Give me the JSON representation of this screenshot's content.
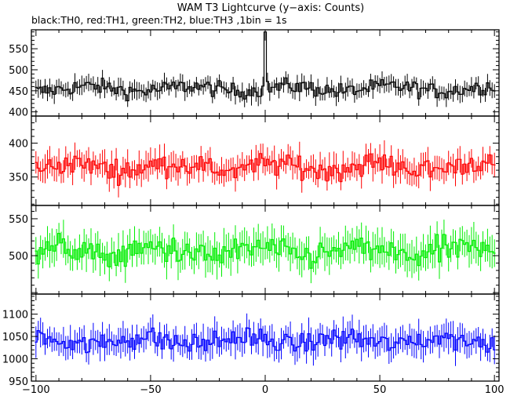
{
  "chart_data": {
    "type": "line",
    "title": "WAM T3 Lightcurve (y−axis: Counts)",
    "subtitle": "black:TH0, red:TH1, green:TH2, blue:TH3 ,1bin = 1s",
    "xlim": [
      -102,
      102
    ],
    "x_ticks": [
      -100,
      -50,
      0,
      50,
      100
    ],
    "x_tick_labels": [
      "−100",
      "−50",
      "0",
      "50",
      "100"
    ],
    "x_step": 1,
    "grid": false,
    "legend": "none",
    "panels": [
      {
        "series_name": "TH0",
        "color": "#000000",
        "ylim": [
          390,
          595
        ],
        "y_ticks": [
          400,
          450,
          500,
          550
        ],
        "baseline": 455,
        "noise": 24,
        "error": 18,
        "spike": {
          "x": 0,
          "value": 590
        }
      },
      {
        "series_name": "TH1",
        "color": "#ff0000",
        "ylim": [
          308,
          440
        ],
        "y_ticks": [
          350,
          400
        ],
        "baseline": 365,
        "noise": 20,
        "error": 17
      },
      {
        "series_name": "TH2",
        "color": "#00ee00",
        "ylim": [
          448,
          568
        ],
        "y_ticks": [
          500,
          550
        ],
        "baseline": 505,
        "noise": 22,
        "error": 20
      },
      {
        "series_name": "TH3",
        "color": "#0000ff",
        "ylim": [
          950,
          1145
        ],
        "y_ticks": [
          950,
          1000,
          1050,
          1100
        ],
        "baseline": 1040,
        "noise": 30,
        "error": 28
      }
    ]
  }
}
